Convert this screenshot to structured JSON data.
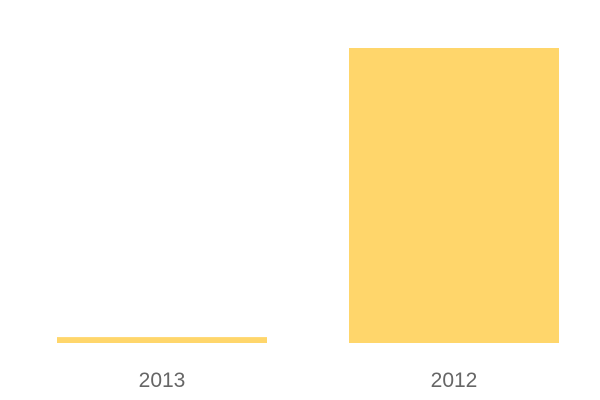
{
  "chart_data": {
    "type": "bar",
    "categories": [
      "2013",
      "2012"
    ],
    "values": [
      2,
      100
    ],
    "title": "",
    "xlabel": "",
    "ylabel": "",
    "ylim": [
      0,
      100
    ],
    "grid": false,
    "color": "#FFD66B"
  }
}
